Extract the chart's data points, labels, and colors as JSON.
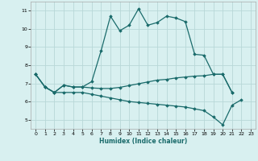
{
  "xlabel": "Humidex (Indice chaleur)",
  "bg_color": "#d8f0f0",
  "grid_color": "#b8d8d8",
  "line_color": "#1a6b6b",
  "xlim": [
    -0.5,
    23.5
  ],
  "ylim": [
    4.5,
    11.5
  ],
  "xticks": [
    0,
    1,
    2,
    3,
    4,
    5,
    6,
    7,
    8,
    9,
    10,
    11,
    12,
    13,
    14,
    15,
    16,
    17,
    18,
    19,
    20,
    21,
    22,
    23
  ],
  "yticks": [
    5,
    6,
    7,
    8,
    9,
    10,
    11
  ],
  "line1_y": [
    7.5,
    6.8,
    6.5,
    6.9,
    6.8,
    6.8,
    7.1,
    8.8,
    10.7,
    9.9,
    10.2,
    11.1,
    10.2,
    10.35,
    10.7,
    10.6,
    10.4,
    8.6,
    8.55,
    7.5,
    7.5,
    6.5,
    null,
    null
  ],
  "line2_y": [
    7.5,
    6.8,
    6.5,
    6.9,
    6.8,
    6.8,
    6.75,
    6.72,
    6.72,
    6.78,
    6.88,
    6.98,
    7.08,
    7.18,
    7.22,
    7.3,
    7.35,
    7.4,
    7.42,
    7.5,
    7.5,
    6.5,
    null,
    null
  ],
  "line3_y": [
    7.5,
    6.8,
    6.5,
    6.5,
    6.5,
    6.5,
    6.4,
    6.3,
    6.2,
    6.1,
    6.0,
    5.95,
    5.9,
    5.85,
    5.8,
    5.75,
    5.7,
    5.6,
    5.5,
    5.15,
    4.72,
    5.8,
    6.1,
    null
  ]
}
